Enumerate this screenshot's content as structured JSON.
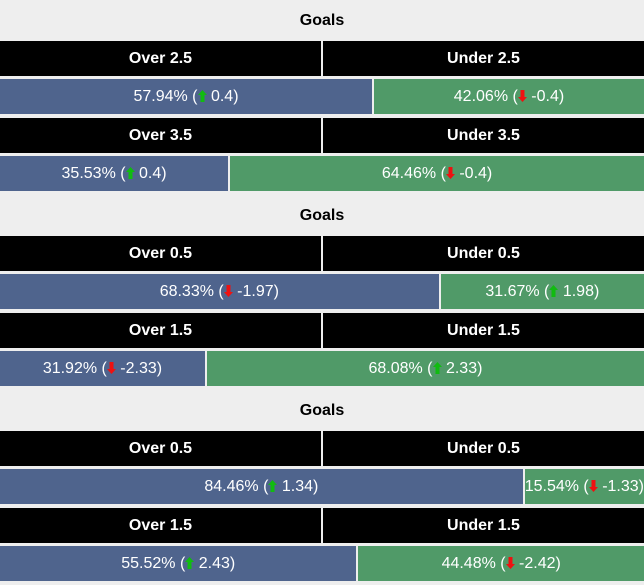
{
  "colors": {
    "over": "#4f648d",
    "under": "#509a68",
    "header": "#000000",
    "up": "#11bb11",
    "down": "#ee1111"
  },
  "sections": [
    {
      "title": "Goals",
      "markets": [
        {
          "over_label": "Over 2.5",
          "under_label": "Under 2.5",
          "over_pct": 57.94,
          "under_pct": 42.06,
          "over_text": "57.94% (",
          "over_change": " 0.4)",
          "over_dir": "up",
          "under_text": "42.06% (",
          "under_change": " -0.4)",
          "under_dir": "down"
        },
        {
          "over_label": "Over 3.5",
          "under_label": "Under 3.5",
          "over_pct": 35.53,
          "under_pct": 64.46,
          "over_text": "35.53% (",
          "over_change": " 0.4)",
          "over_dir": "up",
          "under_text": "64.46% (",
          "under_change": " -0.4)",
          "under_dir": "down"
        }
      ]
    },
    {
      "title": "Goals",
      "markets": [
        {
          "over_label": "Over 0.5",
          "under_label": "Under 0.5",
          "over_pct": 68.33,
          "under_pct": 31.67,
          "over_text": "68.33% (",
          "over_change": " -1.97)",
          "over_dir": "down",
          "under_text": "31.67% (",
          "under_change": " 1.98)",
          "under_dir": "up"
        },
        {
          "over_label": "Over 1.5",
          "under_label": "Under 1.5",
          "over_pct": 31.92,
          "under_pct": 68.08,
          "over_text": "31.92% (",
          "over_change": " -2.33)",
          "over_dir": "down",
          "under_text": "68.08% (",
          "under_change": " 2.33)",
          "under_dir": "up"
        }
      ]
    },
    {
      "title": "Goals",
      "markets": [
        {
          "over_label": "Over 0.5",
          "under_label": "Under 0.5",
          "over_pct": 84.46,
          "under_pct": 15.54,
          "over_text": "84.46% (",
          "over_change": " 1.34)",
          "over_dir": "up",
          "under_text": "15.54% (",
          "under_change": " -1.33)",
          "under_dir": "down"
        },
        {
          "over_label": "Over 1.5",
          "under_label": "Under 1.5",
          "over_pct": 55.52,
          "under_pct": 44.48,
          "over_text": "55.52% (",
          "over_change": " 2.43)",
          "over_dir": "up",
          "under_text": "44.48% (",
          "under_change": " -2.42)",
          "under_dir": "down"
        }
      ]
    }
  ]
}
